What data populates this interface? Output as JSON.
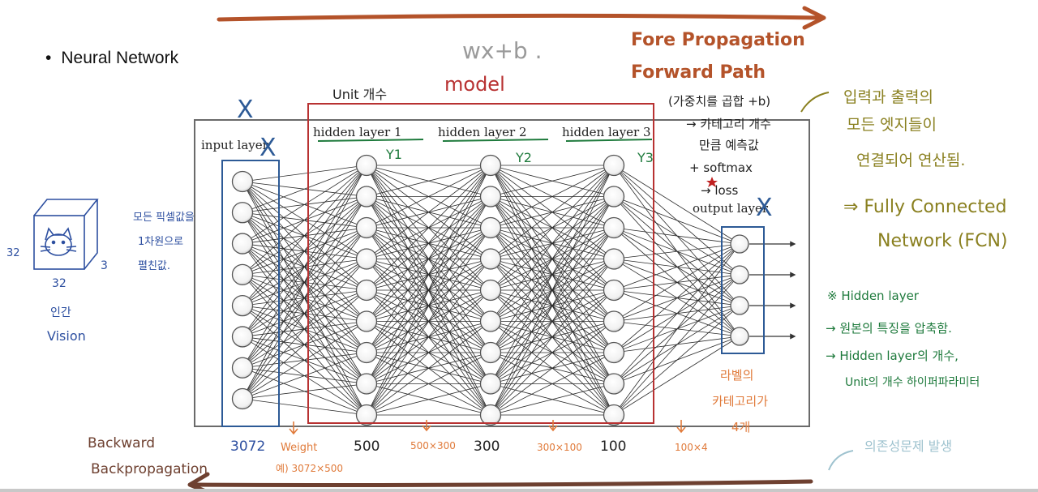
{
  "slide": {
    "bullet": "•",
    "title": "Neural Network"
  },
  "diagram": {
    "formula": "wx+b .",
    "model_label": "model",
    "unit_label": "Unit 개수",
    "layers": {
      "input": {
        "label": "input layer",
        "nodes": 8,
        "size_note": "3072"
      },
      "hidden": [
        {
          "label": "hidden layer 1",
          "tag": "Y1",
          "nodes": 9,
          "size_note": "500"
        },
        {
          "label": "hidden layer 2",
          "tag": "Y2",
          "nodes": 9,
          "size_note": "300"
        },
        {
          "label": "hidden layer 3",
          "tag": "Y3",
          "nodes": 9,
          "size_note": "100"
        }
      ],
      "output": {
        "label": "output layer",
        "nodes": 4
      }
    },
    "weight_notes": {
      "w1_line1": "Weight",
      "w1_line2": "예) 3072×500",
      "w2": "500×300",
      "w3": "300×100",
      "w4": "100×4"
    },
    "x_marks": [
      "X",
      "X",
      "X"
    ]
  },
  "annotations": {
    "forward_line1": "Fore Propagation",
    "forward_line2": "Forward Path",
    "backward_line1": "Backward",
    "backward_line2": "Backpropagation",
    "softmax_notes": [
      "(가중치를 곱합 +b)",
      "→ 카테고리 개수",
      "만큼 예측값",
      "+ softmax",
      "→ loss"
    ],
    "fcn_notes": [
      "입력과 출력의",
      "모든 엣지들이",
      "연결되어 연산됨.",
      "⇒ Fully Connected",
      "Network (FCN)"
    ],
    "pixel_notes": [
      "모든 픽셀값을",
      "1차원으로",
      "펼친값."
    ],
    "image_dims": {
      "left": "32",
      "bottom": "32",
      "right": "3"
    },
    "vision_notes": [
      "인간",
      "Vision"
    ],
    "hidden_notes": [
      "※ Hidden layer",
      "→ 원본의 특징을 압축함.",
      "→ Hidden layer의 개수,",
      "Unit의 개수 하이퍼파라미터"
    ],
    "label_notes": [
      "라벨의",
      "카테고리가",
      "4개"
    ],
    "dependency_note": "의존성문제 발생"
  },
  "colors": {
    "forward": "#b4532a",
    "model": "#b83232",
    "input_box": "#2d5a96",
    "green": "#1e7a3c",
    "olive": "#8a8020",
    "orange": "#e07a3a",
    "blue_note": "#2d4fa0",
    "light_blue": "#9fc3cf",
    "backward": "#6e4030"
  }
}
